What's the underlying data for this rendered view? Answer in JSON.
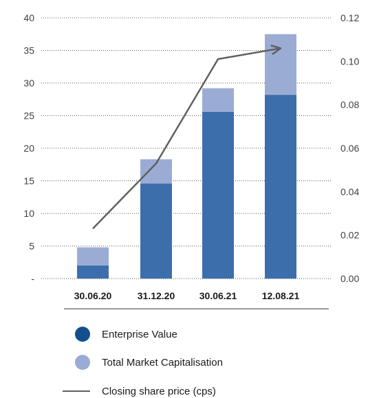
{
  "chart_data": {
    "type": "bar",
    "stacked": true,
    "categories": [
      "30.06.20",
      "31.12.20",
      "30.06.21",
      "12.08.21"
    ],
    "series": [
      {
        "name": "Enterprise Value",
        "kind": "bar",
        "axis": "left",
        "color": "#3d6eac",
        "values": [
          2.0,
          14.6,
          25.6,
          28.2
        ]
      },
      {
        "name": "Total Market Capitalisation",
        "kind": "bar",
        "axis": "left",
        "color": "#9bacd4",
        "values": [
          2.8,
          3.7,
          3.6,
          9.3
        ]
      },
      {
        "name": "Closing share price (cps)",
        "kind": "line",
        "axis": "right",
        "color": "#606060",
        "values": [
          0.023,
          0.053,
          0.101,
          0.106
        ]
      }
    ],
    "y_left": {
      "min": 0,
      "max": 40,
      "ticks": [
        "-",
        "5",
        "10",
        "15",
        "20",
        "25",
        "30",
        "35",
        "40"
      ]
    },
    "y_right": {
      "min": 0,
      "max": 0.12,
      "ticks": [
        "0.00",
        "0.02",
        "0.04",
        "0.06",
        "0.08",
        "0.10",
        "0.12"
      ]
    },
    "grid": "dotted horizontal",
    "legend_position": "bottom",
    "legend": [
      {
        "label": "Enterprise Value",
        "marker": "circle",
        "color": "#134f8d"
      },
      {
        "label": "Total Market Capitalisation",
        "marker": "circle",
        "color": "#9bacd4"
      },
      {
        "label": "Closing share price (cps)",
        "marker": "line",
        "color": "#606060"
      }
    ]
  }
}
